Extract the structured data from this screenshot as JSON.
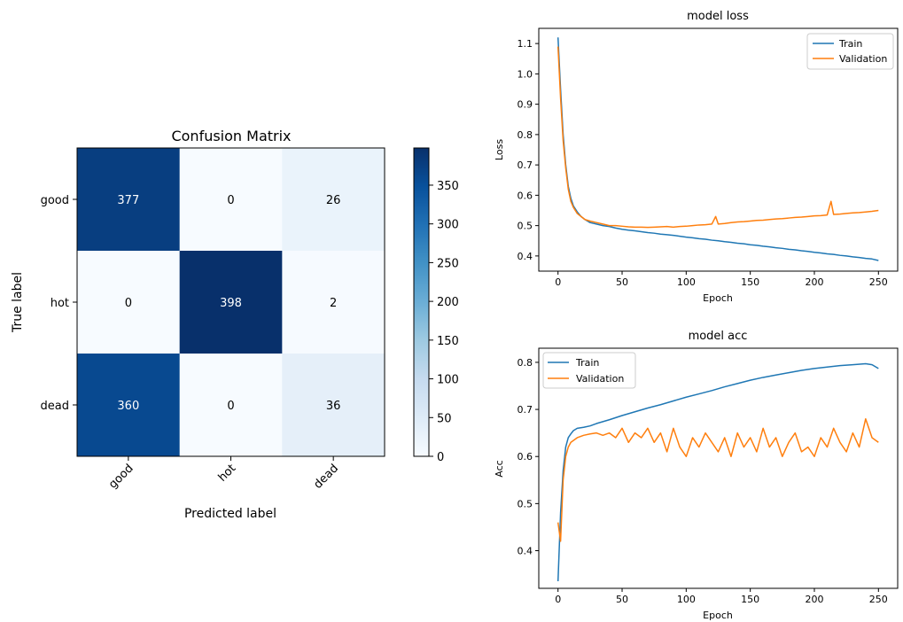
{
  "chart_data": [
    {
      "type": "heatmap",
      "title": "Confusion Matrix",
      "xlabel": "Predicted label",
      "ylabel": "True label",
      "x_categories": [
        "good",
        "hot",
        "dead"
      ],
      "y_categories": [
        "good",
        "hot",
        "dead"
      ],
      "values": [
        [
          377,
          0,
          26
        ],
        [
          0,
          398,
          2
        ],
        [
          360,
          0,
          36
        ]
      ],
      "colormap": "Blues",
      "colorbar_ticks": [
        0,
        50,
        100,
        150,
        200,
        250,
        300,
        350
      ],
      "colorbar_range": [
        0,
        398
      ]
    },
    {
      "type": "line",
      "title": "model loss",
      "xlabel": "Epoch",
      "ylabel": "Loss",
      "xlim": [
        -15,
        265
      ],
      "ylim": [
        0.35,
        1.15
      ],
      "xticks": [
        0,
        50,
        100,
        150,
        200,
        250
      ],
      "yticks": [
        0.4,
        0.5,
        0.6,
        0.7,
        0.8,
        0.9,
        1.0,
        1.1
      ],
      "ytick_labels": [
        "0.4",
        "0.5",
        "0.6",
        "0.7",
        "0.8",
        "0.9",
        "1.0",
        "1.1"
      ],
      "legend": "top-right",
      "series": [
        {
          "name": "Train",
          "color": "#1f77b4",
          "x": [
            0,
            2,
            4,
            6,
            8,
            10,
            12,
            15,
            18,
            21,
            25,
            30,
            35,
            40,
            45,
            50,
            55,
            60,
            65,
            70,
            75,
            80,
            85,
            90,
            95,
            100,
            105,
            110,
            115,
            120,
            125,
            130,
            135,
            140,
            145,
            150,
            155,
            160,
            165,
            170,
            175,
            180,
            185,
            190,
            195,
            200,
            205,
            210,
            215,
            220,
            225,
            230,
            235,
            240,
            245,
            250
          ],
          "y": [
            1.12,
            0.95,
            0.8,
            0.7,
            0.63,
            0.59,
            0.565,
            0.545,
            0.53,
            0.52,
            0.51,
            0.505,
            0.5,
            0.497,
            0.492,
            0.488,
            0.485,
            0.483,
            0.48,
            0.477,
            0.475,
            0.472,
            0.47,
            0.468,
            0.465,
            0.462,
            0.46,
            0.457,
            0.455,
            0.452,
            0.45,
            0.447,
            0.445,
            0.442,
            0.44,
            0.437,
            0.435,
            0.432,
            0.43,
            0.427,
            0.425,
            0.422,
            0.42,
            0.417,
            0.415,
            0.412,
            0.41,
            0.407,
            0.405,
            0.402,
            0.4,
            0.397,
            0.395,
            0.392,
            0.39,
            0.385
          ]
        },
        {
          "name": "Validation",
          "color": "#ff7f0e",
          "x": [
            0,
            2,
            4,
            6,
            8,
            10,
            12,
            15,
            18,
            21,
            25,
            30,
            35,
            40,
            45,
            50,
            55,
            60,
            65,
            70,
            75,
            80,
            85,
            90,
            95,
            100,
            105,
            110,
            115,
            120,
            123,
            125,
            130,
            135,
            140,
            145,
            150,
            155,
            160,
            165,
            170,
            175,
            180,
            185,
            190,
            195,
            200,
            205,
            210,
            213,
            215,
            220,
            225,
            230,
            235,
            240,
            245,
            250
          ],
          "y": [
            1.09,
            0.92,
            0.78,
            0.69,
            0.62,
            0.58,
            0.56,
            0.54,
            0.53,
            0.52,
            0.515,
            0.51,
            0.505,
            0.5,
            0.5,
            0.498,
            0.496,
            0.495,
            0.495,
            0.494,
            0.495,
            0.496,
            0.497,
            0.495,
            0.497,
            0.498,
            0.5,
            0.502,
            0.503,
            0.505,
            0.53,
            0.505,
            0.507,
            0.51,
            0.512,
            0.513,
            0.515,
            0.517,
            0.518,
            0.52,
            0.522,
            0.523,
            0.525,
            0.527,
            0.528,
            0.53,
            0.532,
            0.533,
            0.535,
            0.58,
            0.537,
            0.538,
            0.54,
            0.542,
            0.543,
            0.545,
            0.547,
            0.55
          ]
        }
      ]
    },
    {
      "type": "line",
      "title": "model acc",
      "xlabel": "Epoch",
      "ylabel": "Acc",
      "xlim": [
        -15,
        265
      ],
      "ylim": [
        0.32,
        0.83
      ],
      "xticks": [
        0,
        50,
        100,
        150,
        200,
        250
      ],
      "yticks": [
        0.4,
        0.5,
        0.6,
        0.7,
        0.8
      ],
      "ytick_labels": [
        "0.4",
        "0.5",
        "0.6",
        "0.7",
        "0.8"
      ],
      "legend": "top-left",
      "series": [
        {
          "name": "Train",
          "color": "#1f77b4",
          "x": [
            0,
            2,
            4,
            6,
            8,
            10,
            12,
            15,
            20,
            25,
            30,
            40,
            50,
            60,
            70,
            80,
            90,
            100,
            110,
            120,
            130,
            140,
            150,
            160,
            170,
            180,
            190,
            200,
            210,
            220,
            230,
            240,
            245,
            250
          ],
          "y": [
            0.335,
            0.48,
            0.57,
            0.62,
            0.64,
            0.648,
            0.655,
            0.66,
            0.662,
            0.665,
            0.67,
            0.678,
            0.687,
            0.695,
            0.703,
            0.71,
            0.718,
            0.726,
            0.733,
            0.74,
            0.748,
            0.755,
            0.762,
            0.768,
            0.773,
            0.778,
            0.783,
            0.787,
            0.79,
            0.793,
            0.795,
            0.797,
            0.795,
            0.787
          ]
        },
        {
          "name": "Validation",
          "color": "#ff7f0e",
          "x": [
            0,
            2,
            4,
            6,
            8,
            10,
            15,
            20,
            25,
            30,
            35,
            40,
            45,
            50,
            55,
            60,
            65,
            70,
            75,
            80,
            85,
            90,
            95,
            100,
            105,
            110,
            115,
            120,
            125,
            130,
            135,
            140,
            145,
            150,
            155,
            160,
            165,
            170,
            175,
            180,
            185,
            190,
            195,
            200,
            205,
            210,
            215,
            220,
            225,
            230,
            235,
            240,
            245,
            250
          ],
          "y": [
            0.46,
            0.42,
            0.55,
            0.6,
            0.62,
            0.63,
            0.64,
            0.645,
            0.648,
            0.65,
            0.645,
            0.65,
            0.64,
            0.66,
            0.63,
            0.65,
            0.64,
            0.66,
            0.63,
            0.65,
            0.61,
            0.66,
            0.62,
            0.6,
            0.64,
            0.62,
            0.65,
            0.63,
            0.61,
            0.64,
            0.6,
            0.65,
            0.62,
            0.64,
            0.61,
            0.66,
            0.62,
            0.64,
            0.6,
            0.63,
            0.65,
            0.61,
            0.62,
            0.6,
            0.64,
            0.62,
            0.66,
            0.63,
            0.61,
            0.65,
            0.62,
            0.68,
            0.64,
            0.63
          ]
        }
      ]
    }
  ]
}
